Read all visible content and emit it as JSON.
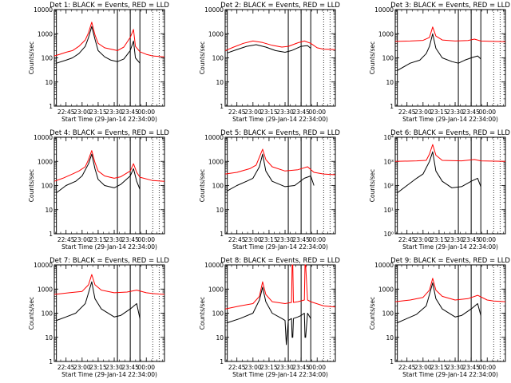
{
  "chart_data": [
    {
      "type": "line",
      "title": "Det 1: BLACK = Events, RED = LLD",
      "xlabel": "Start Time (29-Jan-14 22:34:00)",
      "ylabel": "Counts/sec",
      "xlim": [
        22.567,
        24.283
      ],
      "ylim": [
        1,
        10000
      ],
      "yscale": "log",
      "xticks": [
        "22:45",
        "23:00",
        "23:15",
        "23:30",
        "23:45",
        "00:00"
      ],
      "yticks": [
        "1",
        "10",
        "100",
        "1000",
        "10000"
      ],
      "vlines_solid": [
        22.6,
        23.55,
        23.75,
        23.9
      ],
      "vlines_dotted": [
        24.1,
        24.2
      ],
      "series": [
        {
          "color": "#ff0000",
          "x": [
            22.567,
            22.65,
            22.75,
            22.85,
            22.95,
            23.05,
            23.1,
            23.15,
            23.2,
            23.25,
            23.35,
            23.45,
            23.55,
            23.65,
            23.75,
            23.8,
            23.83,
            23.9,
            24.0,
            24.1,
            24.283
          ],
          "y": [
            120,
            140,
            170,
            200,
            300,
            550,
            1100,
            3000,
            900,
            400,
            260,
            230,
            200,
            280,
            700,
            1500,
            300,
            180,
            140,
            120,
            110
          ]
        },
        {
          "color": "#000000",
          "x": [
            22.6,
            22.75,
            22.85,
            22.95,
            23.05,
            23.1,
            23.15,
            23.2,
            23.25,
            23.35,
            23.45,
            23.55,
            23.65,
            23.75,
            23.8,
            23.83,
            23.9
          ],
          "y": [
            60,
            80,
            100,
            150,
            300,
            700,
            2000,
            600,
            200,
            110,
            80,
            70,
            90,
            200,
            500,
            100,
            60
          ]
        }
      ]
    },
    {
      "type": "line",
      "title": "Det 2: BLACK = Events, RED = LLD",
      "xlabel": "Start Time (29-Jan-14 22:34:00)",
      "ylabel": "Counts/sec",
      "xlim": [
        22.567,
        24.283
      ],
      "ylim": [
        1,
        10000
      ],
      "yscale": "log",
      "xticks": [
        "22:45",
        "23:00",
        "23:15",
        "23:30",
        "23:45",
        "00:00"
      ],
      "yticks": [
        "1",
        "10",
        "100",
        "1000",
        "10000"
      ],
      "vlines_solid": [
        22.6,
        23.55,
        23.75,
        23.9
      ],
      "vlines_dotted": [
        24.1,
        24.2
      ],
      "series": [
        {
          "color": "#ff0000",
          "x": [
            22.567,
            22.7,
            22.85,
            23.0,
            23.15,
            23.3,
            23.45,
            23.55,
            23.7,
            23.8,
            23.9,
            24.0,
            24.1,
            24.283
          ],
          "y": [
            200,
            280,
            400,
            500,
            430,
            330,
            280,
            300,
            420,
            500,
            400,
            260,
            230,
            220
          ]
        },
        {
          "color": "#000000",
          "x": [
            22.6,
            22.75,
            22.9,
            23.05,
            23.2,
            23.35,
            23.5,
            23.6,
            23.75,
            23.85,
            23.9
          ],
          "y": [
            160,
            220,
            300,
            350,
            280,
            200,
            170,
            200,
            300,
            320,
            250
          ]
        }
      ]
    },
    {
      "type": "line",
      "title": "Det 3: BLACK = Events, RED = LLD",
      "xlabel": "Start Time (29-Jan-14 22:34:00)",
      "ylabel": "Counts/sec",
      "xlim": [
        22.567,
        24.283
      ],
      "ylim": [
        1,
        10000
      ],
      "yscale": "log",
      "xticks": [
        "22:45",
        "23:00",
        "23:15",
        "23:30",
        "23:45",
        "00:00"
      ],
      "yticks": [
        "1",
        "10",
        "100",
        "1000",
        "10000"
      ],
      "vlines_solid": [
        22.6,
        23.55,
        23.75,
        23.9
      ],
      "vlines_dotted": [
        24.1,
        24.2
      ],
      "series": [
        {
          "color": "#ff0000",
          "x": [
            22.567,
            22.8,
            23.0,
            23.1,
            23.15,
            23.2,
            23.3,
            23.5,
            23.7,
            23.8,
            23.9,
            24.1,
            24.283
          ],
          "y": [
            480,
            500,
            530,
            700,
            1900,
            800,
            550,
            500,
            520,
            600,
            500,
            480,
            470
          ]
        },
        {
          "color": "#000000",
          "x": [
            22.6,
            22.8,
            22.95,
            23.05,
            23.1,
            23.15,
            23.2,
            23.3,
            23.45,
            23.55,
            23.65,
            23.75,
            23.85,
            23.9
          ],
          "y": [
            30,
            60,
            80,
            150,
            300,
            1000,
            250,
            100,
            70,
            60,
            80,
            100,
            120,
            90
          ]
        }
      ]
    },
    {
      "type": "line",
      "title": "Det 4: BLACK = Events, RED = LLD",
      "xlabel": "Start Time (29-Jan-14 22:34:00)",
      "ylabel": "Counts/sec",
      "xlim": [
        22.567,
        24.283
      ],
      "ylim": [
        1,
        10000
      ],
      "yscale": "log",
      "xticks": [
        "22:45",
        "23:00",
        "23:15",
        "23:30",
        "23:45",
        "00:00"
      ],
      "yticks": [
        "1",
        "10",
        "100",
        "1000",
        "10000"
      ],
      "vlines_solid": [
        22.6,
        23.55,
        23.75,
        23.9
      ],
      "vlines_dotted": [
        24.1,
        24.2
      ],
      "series": [
        {
          "color": "#ff0000",
          "x": [
            22.567,
            22.7,
            22.85,
            22.95,
            23.05,
            23.1,
            23.15,
            23.2,
            23.25,
            23.35,
            23.5,
            23.6,
            23.75,
            23.8,
            23.85,
            23.9,
            24.1,
            24.283
          ],
          "y": [
            150,
            200,
            300,
            400,
            600,
            1200,
            2800,
            900,
            400,
            250,
            200,
            230,
            400,
            800,
            350,
            220,
            160,
            150
          ]
        },
        {
          "color": "#000000",
          "x": [
            22.6,
            22.75,
            22.9,
            23.0,
            23.1,
            23.15,
            23.2,
            23.25,
            23.35,
            23.5,
            23.6,
            23.75,
            23.8,
            23.85,
            23.9
          ],
          "y": [
            50,
            100,
            150,
            250,
            800,
            2000,
            500,
            180,
            100,
            80,
            110,
            250,
            500,
            150,
            70
          ]
        }
      ]
    },
    {
      "type": "line",
      "title": "Det 5: BLACK = Events, RED = LLD",
      "xlabel": "Start Time (29-Jan-14 22:34:00)",
      "ylabel": "Counts/sec",
      "xlim": [
        22.567,
        24.283
      ],
      "ylim": [
        1,
        10000
      ],
      "yscale": "log",
      "xticks": [
        "22:45",
        "23:00",
        "23:15",
        "23:30",
        "23:45",
        "00:00"
      ],
      "yticks": [
        "1",
        "10",
        "100",
        "1000",
        "10000"
      ],
      "vlines_solid": [
        22.6,
        23.55,
        23.75,
        23.9
      ],
      "vlines_dotted": [
        24.1,
        24.2
      ],
      "series": [
        {
          "color": "#ff0000",
          "x": [
            22.567,
            22.75,
            22.95,
            23.05,
            23.1,
            23.15,
            23.2,
            23.3,
            23.5,
            23.7,
            23.85,
            23.95,
            24.1,
            24.283
          ],
          "y": [
            300,
            350,
            500,
            700,
            1500,
            3200,
            1200,
            600,
            400,
            450,
            600,
            350,
            300,
            280
          ]
        },
        {
          "color": "#000000",
          "x": [
            22.6,
            22.75,
            22.9,
            23.0,
            23.1,
            23.15,
            23.2,
            23.3,
            23.5,
            23.65,
            23.8,
            23.9,
            23.95
          ],
          "y": [
            60,
            100,
            150,
            200,
            600,
            2000,
            400,
            150,
            90,
            100,
            200,
            250,
            100
          ]
        }
      ]
    },
    {
      "type": "line",
      "title": "Det 6: BLACK = Events, RED = LLD",
      "xlabel": "Start Time (29-Jan-14 22:34:00)",
      "ylabel": "Counts/sec",
      "xlim": [
        22.567,
        24.283
      ],
      "ylim": [
        1,
        10000
      ],
      "yscale": "log",
      "xticks": [
        "22:45",
        "23:00",
        "23:15",
        "23:30",
        "23:45",
        "00:00"
      ],
      "yticks": [
        "10⁰",
        "10¹",
        "10²",
        "10³",
        "10⁴"
      ],
      "vlines_solid": [
        22.6,
        23.55,
        23.75,
        23.9
      ],
      "vlines_dotted": [
        24.1,
        24.2
      ],
      "series": [
        {
          "color": "#ff0000",
          "x": [
            22.567,
            22.9,
            23.05,
            23.1,
            23.15,
            23.2,
            23.3,
            23.6,
            23.8,
            23.9,
            24.283
          ],
          "y": [
            1000,
            1050,
            1100,
            2000,
            5000,
            1800,
            1100,
            1050,
            1200,
            1050,
            1000
          ]
        },
        {
          "color": "#000000",
          "x": [
            22.6,
            22.75,
            22.9,
            23.0,
            23.1,
            23.15,
            23.2,
            23.3,
            23.45,
            23.6,
            23.75,
            23.85,
            23.9
          ],
          "y": [
            50,
            100,
            200,
            300,
            1000,
            2500,
            400,
            150,
            80,
            90,
            150,
            200,
            90
          ]
        }
      ]
    },
    {
      "type": "line",
      "title": "Det 7: BLACK = Events, RED = LLD",
      "xlabel": "Start Time (29-Jan-14 22:34:00)",
      "ylabel": "Counts/sec",
      "xlim": [
        22.567,
        24.283
      ],
      "ylim": [
        1,
        10000
      ],
      "yscale": "log",
      "xticks": [
        "22:45",
        "23:00",
        "23:15",
        "23:30",
        "23:45",
        "00:00"
      ],
      "yticks": [
        "1",
        "10",
        "100",
        "1000",
        "10000"
      ],
      "vlines_solid": [
        22.6,
        23.55,
        23.75,
        23.9
      ],
      "vlines_dotted": [
        24.1,
        24.2
      ],
      "series": [
        {
          "color": "#ff0000",
          "x": [
            22.567,
            22.8,
            23.0,
            23.1,
            23.15,
            23.2,
            23.3,
            23.5,
            23.7,
            23.85,
            24.0,
            24.1,
            24.283
          ],
          "y": [
            600,
            700,
            800,
            1500,
            4000,
            1500,
            900,
            700,
            750,
            900,
            700,
            650,
            600
          ]
        },
        {
          "color": "#000000",
          "x": [
            22.6,
            22.75,
            22.9,
            23.05,
            23.1,
            23.15,
            23.2,
            23.3,
            23.5,
            23.6,
            23.75,
            23.85,
            23.9
          ],
          "y": [
            50,
            70,
            100,
            250,
            700,
            2000,
            400,
            150,
            70,
            80,
            150,
            250,
            60
          ]
        }
      ]
    },
    {
      "type": "line",
      "title": "Det 8: BLACK = Events, RED = LLD",
      "xlabel": "Start Time (29-Jan-14 22:34:00)",
      "ylabel": "Counts/sec",
      "xlim": [
        22.567,
        24.283
      ],
      "ylim": [
        1,
        10000
      ],
      "yscale": "log",
      "xticks": [
        "22:45",
        "23:00",
        "23:15",
        "23:30",
        "23:45",
        "00:00"
      ],
      "yticks": [
        "1",
        "10",
        "100",
        "1000",
        "10000"
      ],
      "vlines_solid": [
        22.6,
        23.55,
        23.75,
        23.9
      ],
      "vlines_dotted": [
        24.1,
        24.2
      ],
      "series": [
        {
          "color": "#ff0000",
          "x": [
            22.567,
            22.8,
            23.0,
            23.1,
            23.15,
            23.2,
            23.3,
            23.5,
            23.6,
            23.61,
            23.62,
            23.63,
            23.7,
            23.8,
            23.81,
            23.82,
            23.85,
            23.9,
            24.1,
            24.283
          ],
          "y": [
            150,
            200,
            250,
            500,
            2000,
            600,
            300,
            250,
            280,
            10000,
            10000,
            280,
            300,
            350,
            10000,
            10000,
            350,
            300,
            200,
            180
          ]
        },
        {
          "color": "#000000",
          "x": [
            22.6,
            22.8,
            23.0,
            23.1,
            23.15,
            23.2,
            23.3,
            23.45,
            23.5,
            23.52,
            23.55,
            23.6,
            23.61,
            23.62,
            23.63,
            23.7,
            23.75,
            23.8,
            23.81,
            23.82,
            23.85,
            23.9
          ],
          "y": [
            40,
            60,
            100,
            350,
            1200,
            300,
            100,
            60,
            50,
            5,
            50,
            60,
            10,
            10,
            60,
            70,
            80,
            100,
            10,
            10,
            100,
            60
          ]
        }
      ]
    },
    {
      "type": "line",
      "title": "Det 9: BLACK = Events, RED = LLD",
      "xlabel": "Start Time (29-Jan-14 22:34:00)",
      "ylabel": "Counts/sec",
      "xlim": [
        22.567,
        24.283
      ],
      "ylim": [
        1,
        10000
      ],
      "yscale": "log",
      "xticks": [
        "22:45",
        "23:00",
        "23:15",
        "23:30",
        "23:45",
        "00:00"
      ],
      "yticks": [
        "1",
        "10",
        "100",
        "1000",
        "10000"
      ],
      "vlines_solid": [
        22.6,
        23.55,
        23.75,
        23.9
      ],
      "vlines_dotted": [
        24.1,
        24.2
      ],
      "series": [
        {
          "color": "#ff0000",
          "x": [
            22.567,
            22.8,
            23.0,
            23.1,
            23.15,
            23.2,
            23.3,
            23.5,
            23.7,
            23.85,
            24.0,
            24.1,
            24.283
          ],
          "y": [
            300,
            350,
            450,
            900,
            2800,
            900,
            500,
            350,
            400,
            550,
            350,
            320,
            300
          ]
        },
        {
          "color": "#000000",
          "x": [
            22.6,
            22.75,
            22.9,
            23.05,
            23.1,
            23.15,
            23.2,
            23.3,
            23.5,
            23.6,
            23.75,
            23.85,
            23.9
          ],
          "y": [
            40,
            60,
            90,
            200,
            600,
            1800,
            400,
            150,
            70,
            80,
            150,
            250,
            80
          ]
        }
      ]
    }
  ]
}
